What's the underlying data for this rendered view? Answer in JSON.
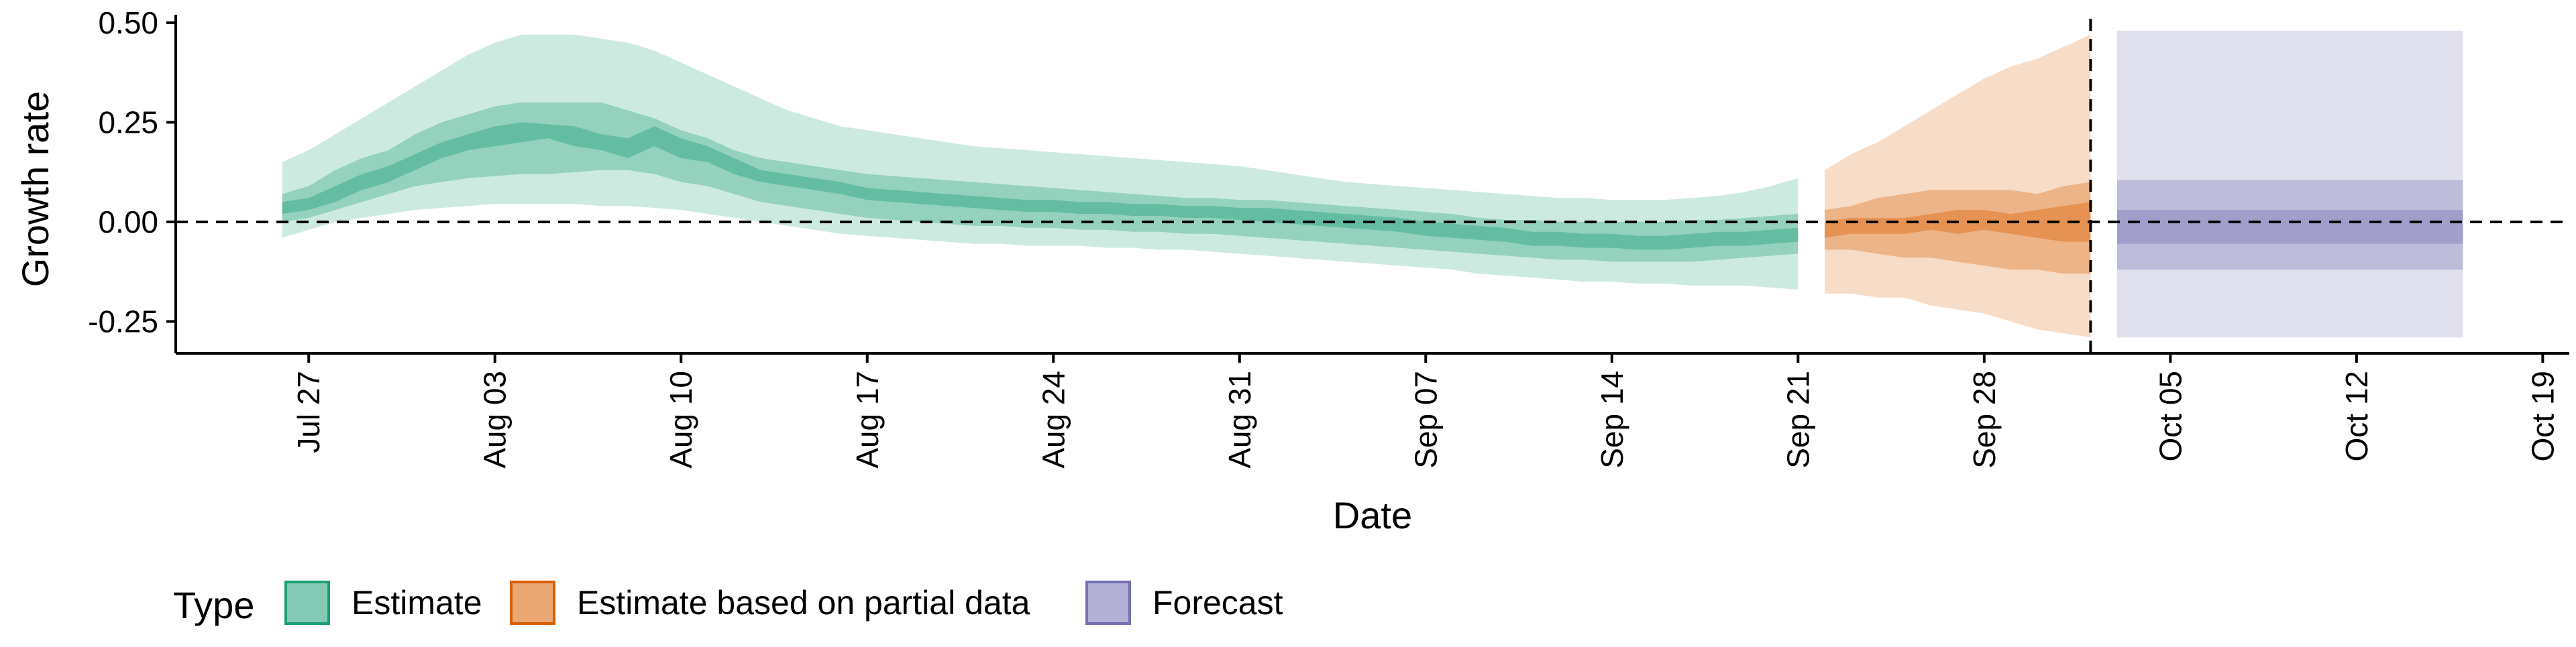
{
  "chart_data": {
    "type": "area",
    "title": "",
    "xlabel": "Date",
    "ylabel": "Growth rate",
    "xlim": [
      "2020-07-22",
      "2020-10-20"
    ],
    "ylim": [
      -0.33,
      0.52
    ],
    "x_tick_labels": [
      "Jul 27",
      "Aug 03",
      "Aug 10",
      "Aug 17",
      "Aug 24",
      "Aug 31",
      "Sep 07",
      "Sep 14",
      "Sep 21",
      "Sep 28",
      "Oct 05",
      "Oct 12",
      "Oct 19"
    ],
    "x_tick_dates": [
      "2020-07-27",
      "2020-08-03",
      "2020-08-10",
      "2020-08-17",
      "2020-08-24",
      "2020-08-31",
      "2020-09-07",
      "2020-09-14",
      "2020-09-21",
      "2020-09-28",
      "2020-10-05",
      "2020-10-12",
      "2020-10-19"
    ],
    "y_tick_labels": [
      "-0.25",
      "0.00",
      "0.25",
      "0.50"
    ],
    "y_tick_values": [
      -0.25,
      0.0,
      0.25,
      0.5
    ],
    "reference_hline": 0.0,
    "forecast_start_date": "2020-10-02",
    "grid": false,
    "legend_position": "bottom-left",
    "legend_title": "Type",
    "series": [
      {
        "name": "Estimate",
        "color": "#1b9e77",
        "dates": [
          "2020-07-26",
          "2020-07-27",
          "2020-07-28",
          "2020-07-29",
          "2020-07-30",
          "2020-07-31",
          "2020-08-01",
          "2020-08-02",
          "2020-08-03",
          "2020-08-04",
          "2020-08-05",
          "2020-08-06",
          "2020-08-07",
          "2020-08-08",
          "2020-08-09",
          "2020-08-10",
          "2020-08-11",
          "2020-08-12",
          "2020-08-13",
          "2020-08-14",
          "2020-08-15",
          "2020-08-16",
          "2020-08-17",
          "2020-08-18",
          "2020-08-19",
          "2020-08-20",
          "2020-08-21",
          "2020-08-22",
          "2020-08-23",
          "2020-08-24",
          "2020-08-25",
          "2020-08-26",
          "2020-08-27",
          "2020-08-28",
          "2020-08-29",
          "2020-08-30",
          "2020-08-31",
          "2020-09-01",
          "2020-09-02",
          "2020-09-03",
          "2020-09-04",
          "2020-09-05",
          "2020-09-06",
          "2020-09-07",
          "2020-09-08",
          "2020-09-09",
          "2020-09-10",
          "2020-09-11",
          "2020-09-12",
          "2020-09-13",
          "2020-09-14",
          "2020-09-15",
          "2020-09-16",
          "2020-09-17",
          "2020-09-18",
          "2020-09-19",
          "2020-09-20",
          "2020-09-21"
        ],
        "upper90": [
          0.15,
          0.18,
          0.22,
          0.26,
          0.3,
          0.34,
          0.38,
          0.42,
          0.45,
          0.47,
          0.47,
          0.47,
          0.46,
          0.45,
          0.43,
          0.4,
          0.37,
          0.34,
          0.31,
          0.28,
          0.26,
          0.24,
          0.23,
          0.22,
          0.21,
          0.2,
          0.19,
          0.185,
          0.18,
          0.175,
          0.17,
          0.165,
          0.16,
          0.155,
          0.15,
          0.145,
          0.14,
          0.13,
          0.12,
          0.11,
          0.1,
          0.095,
          0.09,
          0.085,
          0.08,
          0.075,
          0.07,
          0.065,
          0.06,
          0.06,
          0.055,
          0.055,
          0.055,
          0.06,
          0.065,
          0.075,
          0.09,
          0.11
        ],
        "upper50": [
          0.07,
          0.09,
          0.13,
          0.16,
          0.18,
          0.22,
          0.25,
          0.27,
          0.29,
          0.3,
          0.3,
          0.3,
          0.3,
          0.28,
          0.26,
          0.23,
          0.21,
          0.18,
          0.16,
          0.15,
          0.14,
          0.13,
          0.12,
          0.115,
          0.11,
          0.105,
          0.1,
          0.095,
          0.09,
          0.085,
          0.08,
          0.075,
          0.07,
          0.065,
          0.06,
          0.06,
          0.055,
          0.055,
          0.05,
          0.045,
          0.04,
          0.035,
          0.03,
          0.025,
          0.02,
          0.01,
          0.005,
          0.005,
          0.0,
          0.0,
          0.0,
          0.0,
          0.0,
          0.005,
          0.005,
          0.01,
          0.015,
          0.02
        ],
        "upper20": [
          0.05,
          0.06,
          0.09,
          0.12,
          0.14,
          0.17,
          0.2,
          0.22,
          0.24,
          0.25,
          0.245,
          0.24,
          0.22,
          0.21,
          0.24,
          0.21,
          0.19,
          0.16,
          0.13,
          0.12,
          0.11,
          0.1,
          0.085,
          0.08,
          0.075,
          0.07,
          0.065,
          0.06,
          0.055,
          0.055,
          0.05,
          0.05,
          0.045,
          0.045,
          0.04,
          0.04,
          0.035,
          0.035,
          0.03,
          0.025,
          0.02,
          0.015,
          0.01,
          0.0,
          -0.005,
          -0.01,
          -0.015,
          -0.025,
          -0.025,
          -0.03,
          -0.03,
          -0.035,
          -0.035,
          -0.03,
          -0.025,
          -0.025,
          -0.02,
          -0.015
        ],
        "lower20": [
          0.02,
          0.03,
          0.05,
          0.08,
          0.1,
          0.13,
          0.16,
          0.18,
          0.19,
          0.2,
          0.21,
          0.19,
          0.18,
          0.16,
          0.19,
          0.16,
          0.15,
          0.12,
          0.1,
          0.09,
          0.08,
          0.07,
          0.055,
          0.05,
          0.045,
          0.04,
          0.035,
          0.03,
          0.025,
          0.025,
          0.02,
          0.02,
          0.015,
          0.015,
          0.01,
          0.01,
          0.005,
          0.0,
          -0.005,
          -0.01,
          -0.015,
          -0.02,
          -0.025,
          -0.035,
          -0.04,
          -0.045,
          -0.05,
          -0.06,
          -0.06,
          -0.065,
          -0.065,
          -0.07,
          -0.07,
          -0.065,
          -0.06,
          -0.06,
          -0.055,
          -0.05
        ],
        "lower50": [
          0.0,
          0.01,
          0.03,
          0.05,
          0.07,
          0.09,
          0.1,
          0.11,
          0.115,
          0.12,
          0.12,
          0.125,
          0.13,
          0.13,
          0.12,
          0.1,
          0.09,
          0.07,
          0.05,
          0.04,
          0.03,
          0.02,
          0.01,
          0.005,
          0.0,
          -0.005,
          -0.01,
          -0.01,
          -0.015,
          -0.015,
          -0.02,
          -0.02,
          -0.025,
          -0.025,
          -0.03,
          -0.03,
          -0.035,
          -0.04,
          -0.045,
          -0.05,
          -0.055,
          -0.06,
          -0.065,
          -0.07,
          -0.075,
          -0.08,
          -0.085,
          -0.09,
          -0.095,
          -0.095,
          -0.1,
          -0.1,
          -0.1,
          -0.1,
          -0.095,
          -0.09,
          -0.085,
          -0.08
        ],
        "lower90": [
          -0.04,
          -0.02,
          0.0,
          0.01,
          0.02,
          0.03,
          0.035,
          0.04,
          0.045,
          0.045,
          0.045,
          0.045,
          0.04,
          0.04,
          0.035,
          0.03,
          0.02,
          0.01,
          0.0,
          -0.01,
          -0.02,
          -0.03,
          -0.035,
          -0.04,
          -0.045,
          -0.05,
          -0.055,
          -0.055,
          -0.06,
          -0.06,
          -0.06,
          -0.065,
          -0.065,
          -0.07,
          -0.07,
          -0.075,
          -0.08,
          -0.085,
          -0.09,
          -0.095,
          -0.1,
          -0.105,
          -0.11,
          -0.115,
          -0.12,
          -0.13,
          -0.135,
          -0.14,
          -0.145,
          -0.15,
          -0.15,
          -0.155,
          -0.155,
          -0.16,
          -0.16,
          -0.16,
          -0.165,
          -0.17
        ]
      },
      {
        "name": "Estimate based on partial data",
        "color": "#d95f02",
        "dates": [
          "2020-09-22",
          "2020-09-23",
          "2020-09-24",
          "2020-09-25",
          "2020-09-26",
          "2020-09-27",
          "2020-09-28",
          "2020-09-29",
          "2020-09-30",
          "2020-10-01",
          "2020-10-02"
        ],
        "upper90": [
          0.13,
          0.17,
          0.2,
          0.24,
          0.28,
          0.32,
          0.36,
          0.39,
          0.41,
          0.44,
          0.47
        ],
        "upper50": [
          0.03,
          0.04,
          0.06,
          0.07,
          0.08,
          0.08,
          0.08,
          0.08,
          0.07,
          0.09,
          0.1
        ],
        "upper20": [
          0.0,
          0.01,
          0.01,
          0.01,
          0.02,
          0.03,
          0.03,
          0.02,
          0.03,
          0.04,
          0.05
        ],
        "lower20": [
          -0.04,
          -0.03,
          -0.03,
          -0.03,
          -0.02,
          -0.03,
          -0.02,
          -0.03,
          -0.04,
          -0.05,
          -0.05
        ],
        "lower50": [
          -0.07,
          -0.07,
          -0.08,
          -0.09,
          -0.09,
          -0.1,
          -0.11,
          -0.12,
          -0.12,
          -0.13,
          -0.13
        ],
        "lower90": [
          -0.18,
          -0.18,
          -0.19,
          -0.19,
          -0.21,
          -0.22,
          -0.23,
          -0.25,
          -0.27,
          -0.28,
          -0.29
        ]
      },
      {
        "name": "Forecast",
        "color": "#7570b3",
        "dates": [
          "2020-10-03",
          "2020-10-16"
        ],
        "upper90": [
          0.48,
          0.48
        ],
        "upper50": [
          0.105,
          0.105
        ],
        "upper20": [
          0.03,
          0.03
        ],
        "lower20": [
          -0.055,
          -0.055
        ],
        "lower50": [
          -0.12,
          -0.12
        ],
        "lower90": [
          -0.29,
          -0.29
        ]
      }
    ]
  }
}
